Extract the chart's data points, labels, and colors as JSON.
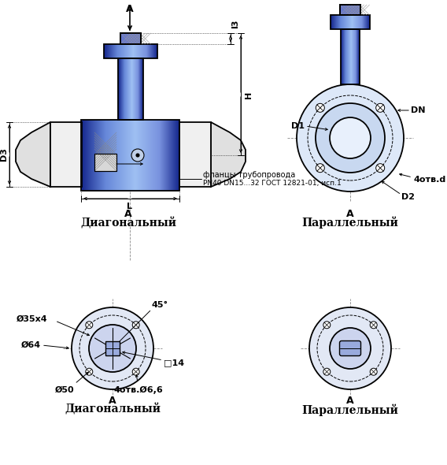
{
  "bg_color": "#ffffff",
  "lc": "#000000",
  "label_A": "A",
  "label_diag": "Диагональный",
  "label_par": "Параллельный",
  "label_flanets": "фланцы трубопровода",
  "label_gost": "PN40 DN15...32 ГОСТ 12821-01, исп.1",
  "label_D3": "D3",
  "label_L": "L",
  "label_H": "H",
  "label_l3": "l3",
  "label_D1": "D1",
  "label_D2": "D2",
  "label_DN": "DN",
  "label_4otv_d": "4отв.d",
  "label_35x4": "Ø35х4",
  "label_64": "Ø64",
  "label_50": "Ø50",
  "label_14": "□14",
  "label_45": "45°",
  "label_4otv_66": "4отв.Ø6,6"
}
